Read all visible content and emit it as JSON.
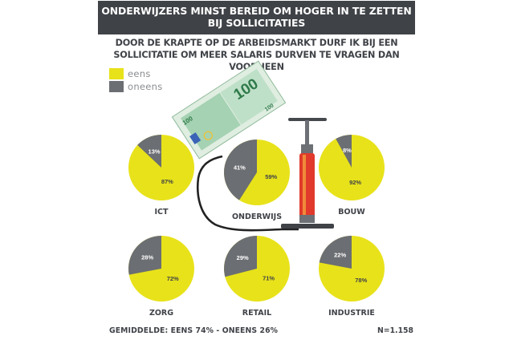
{
  "header": {
    "title_line1": "ONDERWIJZERS MINST BEREID OM HOGER IN TE ZETTEN",
    "title_line2": "BIJ SOLLICITATIES"
  },
  "subtitle_line1": "DOOR DE KRAPTE OP DE ARBEIDSMARKT DURF IK BIJ EEN",
  "subtitle_line2": "SOLLICITATIE OM MEER SALARIS DURVEN TE VRAGEN DAN VOORHEEN",
  "colors": {
    "eens": "#e8e21a",
    "oneens": "#6b6e72",
    "dark": "#3f4247"
  },
  "legend": [
    {
      "label": "eens",
      "color": "#e8e21a"
    },
    {
      "label": "oneens",
      "color": "#6b6e72"
    }
  ],
  "illustration": {
    "banknote_value": "100"
  },
  "chart_data": {
    "type": "pie",
    "series_names": [
      "eens",
      "oneens"
    ],
    "pies": [
      {
        "category": "ICT",
        "eens": 87,
        "oneens": 13,
        "eens_label": "87%",
        "oneens_label": "13%"
      },
      {
        "category": "ONDERWIJS",
        "eens": 59,
        "oneens": 41,
        "eens_label": "59%",
        "oneens_label": "41%"
      },
      {
        "category": "BOUW",
        "eens": 92,
        "oneens": 8,
        "eens_label": "92%",
        "oneens_label": "8%"
      },
      {
        "category": "ZORG",
        "eens": 72,
        "oneens": 28,
        "eens_label": "72%",
        "oneens_label": "28%"
      },
      {
        "category": "RETAIL",
        "eens": 71,
        "oneens": 29,
        "eens_label": "71%",
        "oneens_label": "29%"
      },
      {
        "category": "INDUSTRIE",
        "eens": 78,
        "oneens": 22,
        "eens_label": "78%",
        "oneens_label": "22%"
      }
    ]
  },
  "footer": {
    "average_label": "GEMIDDELDE: EENS 74% - ONEENS 26%",
    "n_label": "N=1.158"
  }
}
